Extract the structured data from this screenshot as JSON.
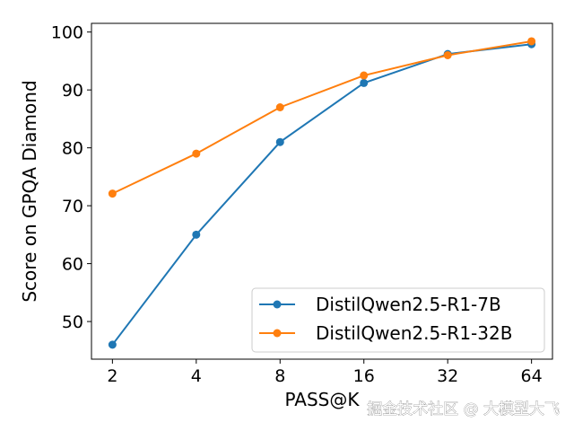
{
  "chart_data": {
    "type": "line",
    "title": "",
    "xlabel": "PASS@K",
    "ylabel": "Score on GPQA Diamond",
    "x_scale": "log2",
    "categories": [
      "2",
      "4",
      "8",
      "16",
      "32",
      "64"
    ],
    "x": [
      2,
      4,
      8,
      16,
      32,
      64
    ],
    "ylim": [
      43.5,
      101.5
    ],
    "yticks": [
      50,
      60,
      70,
      80,
      90,
      100
    ],
    "grid": false,
    "legend_position": "lower-right",
    "series": [
      {
        "name": "DistilQwen2.5-R1-7B",
        "color": "#1f77b4",
        "values": [
          46.0,
          65.0,
          81.0,
          91.2,
          96.2,
          97.9
        ]
      },
      {
        "name": "DistilQwen2.5-R1-32B",
        "color": "#ff7f0e",
        "values": [
          72.1,
          79.0,
          87.0,
          92.5,
          96.0,
          98.4
        ]
      }
    ]
  },
  "watermark": "掘金技术社区 @ 大模型大飞"
}
